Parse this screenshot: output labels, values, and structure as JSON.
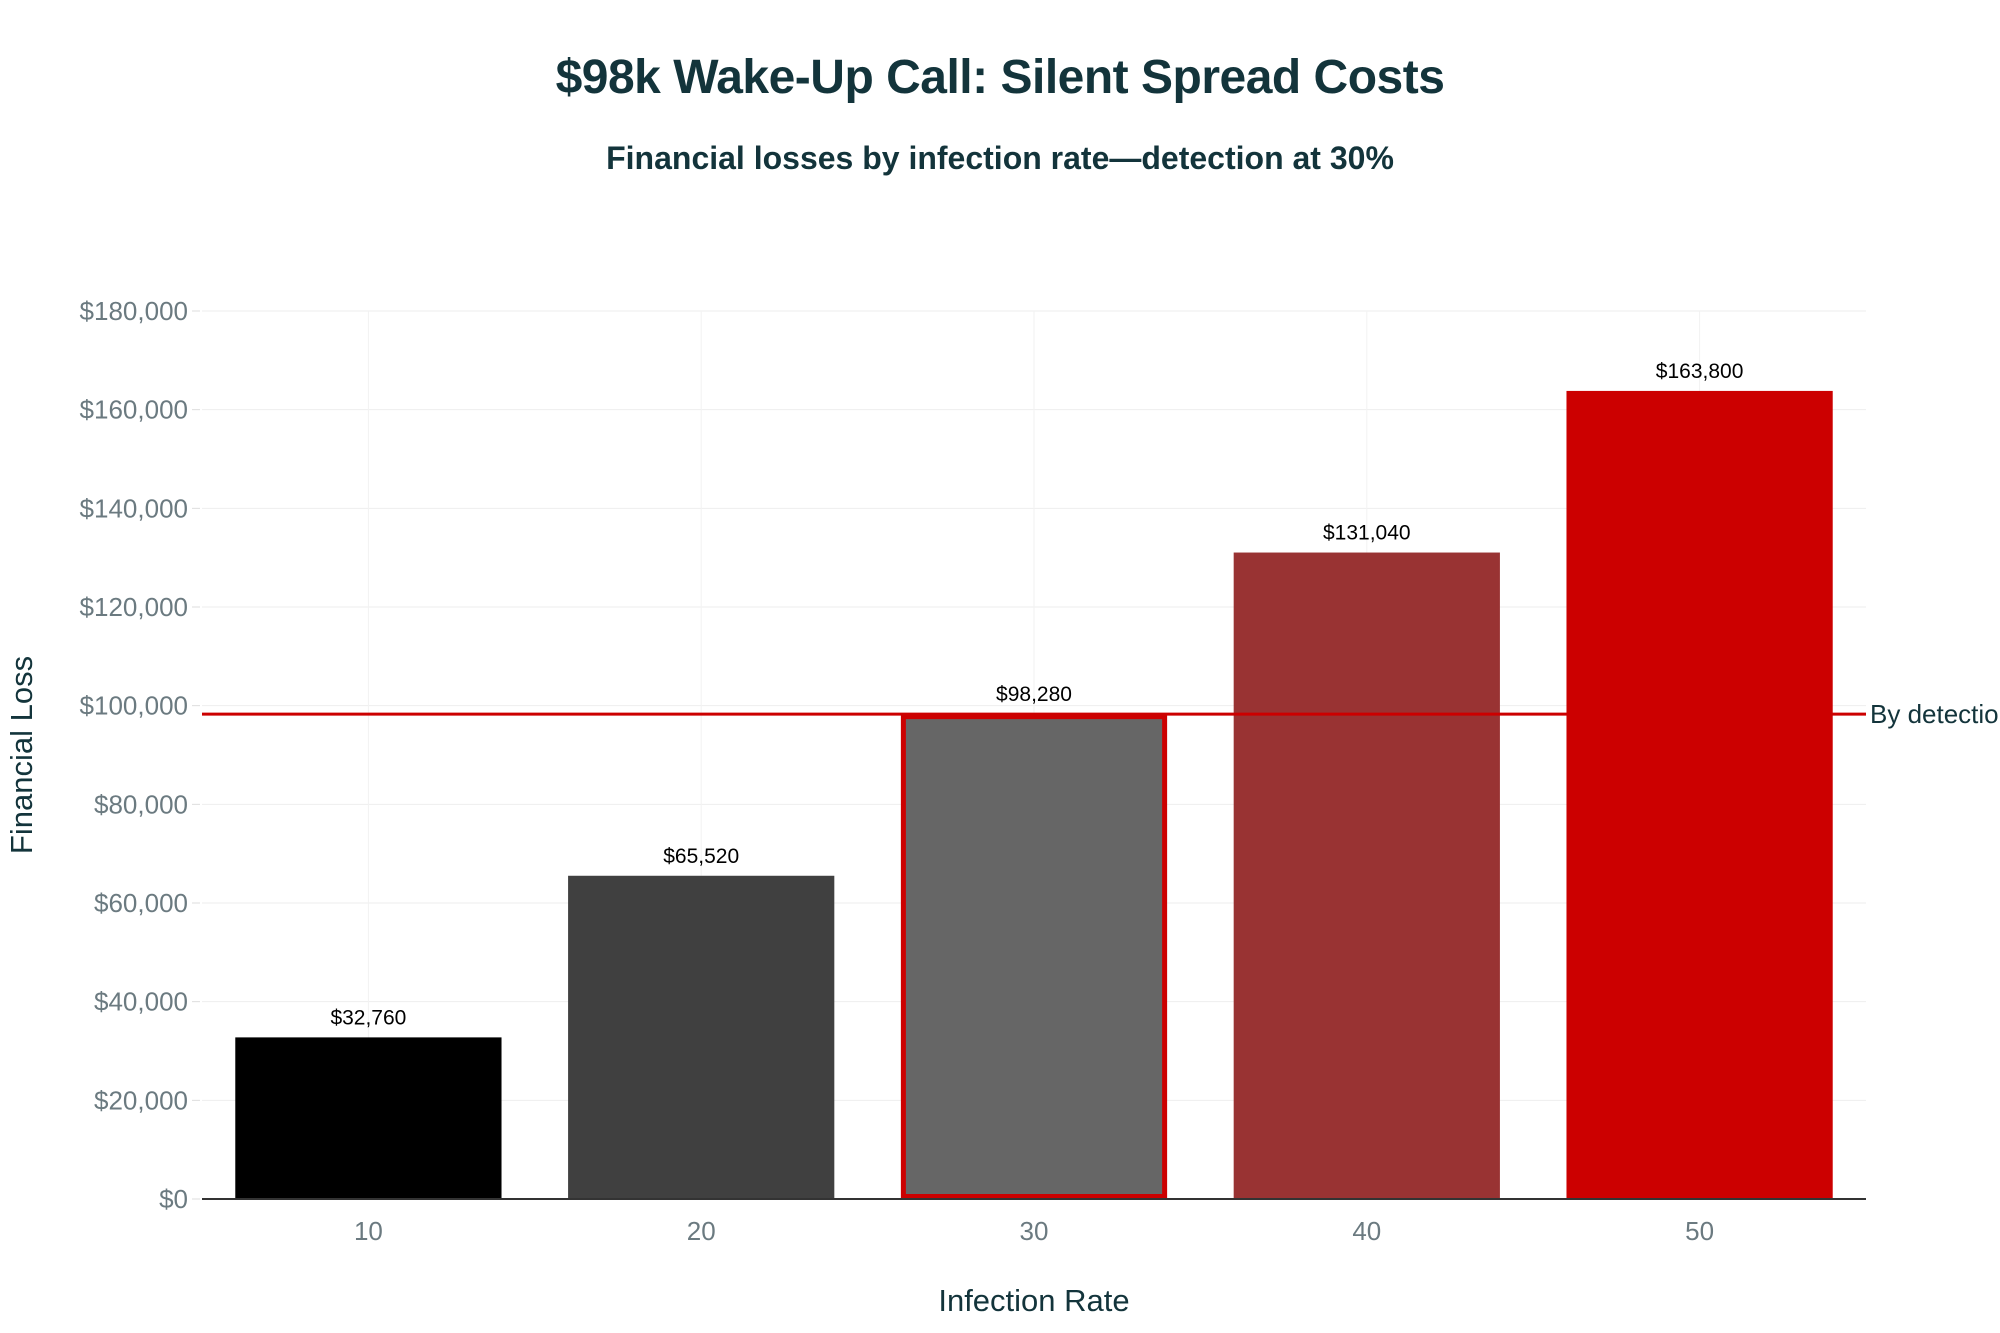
{
  "chart_data": {
    "type": "bar",
    "title": "$98k Wake-Up Call: Silent Spread Costs",
    "subtitle": "Financial losses by infection rate—detection at 30%",
    "xlabel": "Infection Rate",
    "ylabel": "Financial Loss",
    "categories": [
      "10",
      "20",
      "30",
      "40",
      "50"
    ],
    "values": [
      32760,
      65520,
      98280,
      131040,
      163800
    ],
    "data_labels": [
      "$32,760",
      "$65,520",
      "$98,280",
      "$131,040",
      "$163,800"
    ],
    "bar_colors": [
      "#000000",
      "#404040",
      "#666666",
      "#993333",
      "#cc0000"
    ],
    "highlight": {
      "category": "30",
      "outline_color": "#cc0000"
    },
    "ylim": [
      0,
      180000
    ],
    "yticks": [
      0,
      20000,
      40000,
      60000,
      80000,
      100000,
      120000,
      140000,
      160000,
      180000
    ],
    "ytick_labels": [
      "$0",
      "$20,000",
      "$40,000",
      "$60,000",
      "$80,000",
      "$100,000",
      "$120,000",
      "$140,000",
      "$160,000",
      "$180,000"
    ],
    "reference_line": {
      "value": 98280,
      "label": "By detection",
      "color": "#cc0000"
    },
    "grid": true,
    "legend": "none"
  }
}
